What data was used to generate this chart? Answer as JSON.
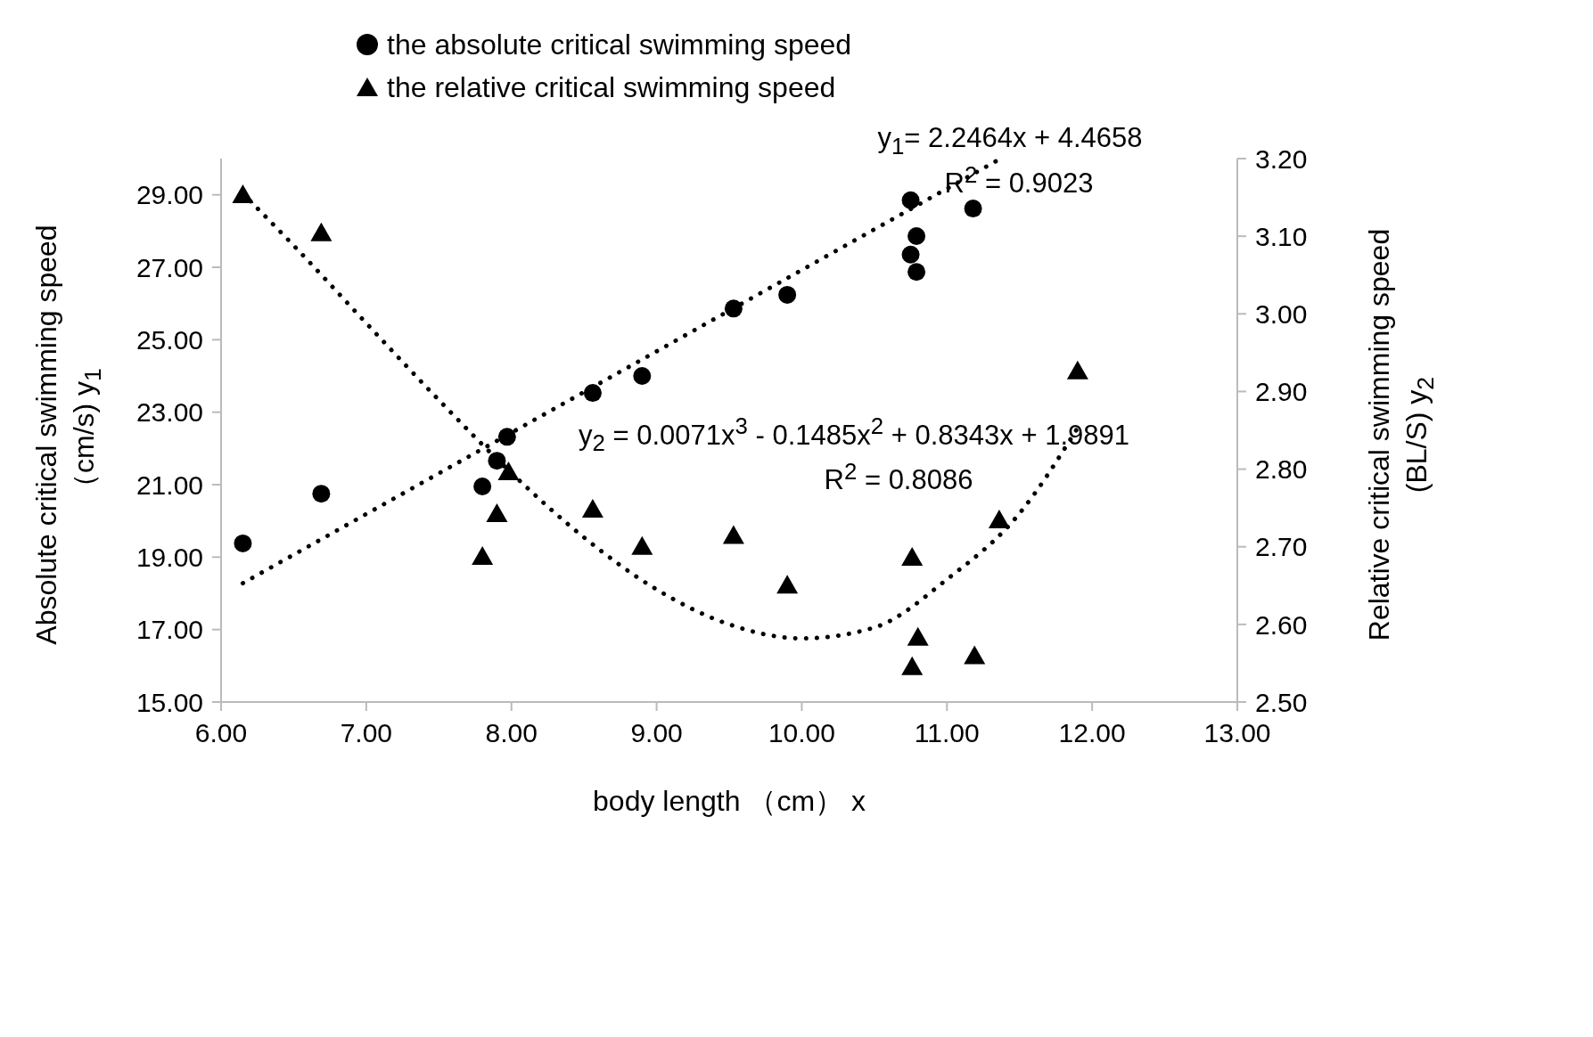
{
  "chart_data": {
    "type": "scatter",
    "xlabel": "body length （cm） x",
    "ylabel": "Absolute critical swimming speed\n（cm/s) y$_{1}$",
    "y2label": "Relative  critical swimming speed\n(BL/S) y$_{2}$",
    "xlim": [
      6,
      13
    ],
    "xticks": [
      {
        "value": 6,
        "label": "6.00"
      },
      {
        "value": 7,
        "label": "7.00"
      },
      {
        "value": 8,
        "label": "8.00"
      },
      {
        "value": 9,
        "label": "9.00"
      },
      {
        "value": 10,
        "label": "10.00"
      },
      {
        "value": 11,
        "label": "11.00"
      },
      {
        "value": 12,
        "label": "12.00"
      },
      {
        "value": 13,
        "label": "13.00"
      }
    ],
    "ylim": [
      15,
      30
    ],
    "yticks": [
      {
        "value": 15,
        "label": "15.00"
      },
      {
        "value": 17,
        "label": "17.00"
      },
      {
        "value": 19,
        "label": "19.00"
      },
      {
        "value": 21,
        "label": "21.00"
      },
      {
        "value": 23,
        "label": "23.00"
      },
      {
        "value": 25,
        "label": "25.00"
      },
      {
        "value": 27,
        "label": "27.00"
      },
      {
        "value": 29,
        "label": "29.00"
      }
    ],
    "y2lim": [
      2.5,
      3.2
    ],
    "y2ticks": [
      {
        "value": 2.5,
        "label": "2.50"
      },
      {
        "value": 2.6,
        "label": "2.60"
      },
      {
        "value": 2.7,
        "label": "2.70"
      },
      {
        "value": 2.8,
        "label": "2.80"
      },
      {
        "value": 2.9,
        "label": "2.90"
      },
      {
        "value": 3.0,
        "label": "3.00"
      },
      {
        "value": 3.1,
        "label": "3.10"
      },
      {
        "value": 3.2,
        "label": "3.20"
      }
    ],
    "legend": "top",
    "series": [
      {
        "name": "the absolute critical swimming  speed",
        "type": "scatter",
        "marker": "circle",
        "color": "#000000",
        "x": [
          6.15,
          6.69,
          7.8,
          7.9,
          7.97,
          8.56,
          8.9,
          9.53,
          9.9,
          10.75,
          10.79,
          10.75,
          10.79,
          11.18
        ],
        "values": [
          19.38,
          20.75,
          20.95,
          21.66,
          22.32,
          23.53,
          24.0,
          25.86,
          26.24,
          28.85,
          27.86,
          27.35,
          26.87,
          28.62
        ]
      },
      {
        "name": "the relative critical swimming  speed",
        "type": "scatter",
        "marker": "triangle",
        "axis": "y2",
        "color": "#000000",
        "x": [
          6.15,
          6.69,
          7.8,
          7.9,
          7.98,
          8.56,
          8.9,
          9.53,
          9.9,
          10.76,
          10.8,
          10.76,
          11.19,
          11.36,
          11.9
        ],
        "values": [
          3.153,
          3.104,
          2.687,
          2.742,
          2.796,
          2.748,
          2.7,
          2.714,
          2.65,
          2.686,
          2.583,
          2.545,
          2.559,
          2.734,
          2.926
        ]
      },
      {
        "type": "line",
        "line_style": "dotted",
        "marker": "none",
        "color": "#000000",
        "x": [
          6.15,
          11.37
        ],
        "values": [
          18.28,
          30.0
        ]
      },
      {
        "type": "line",
        "line_style": "dotted",
        "marker": "none",
        "axis": "y2",
        "color": "#000000",
        "x": [
          6.15,
          6.5,
          7,
          7.5,
          8,
          8.5,
          9,
          9.5,
          10,
          10.5,
          11,
          11.5,
          11.9
        ],
        "values": [
          3.155,
          3.088,
          2.988,
          2.889,
          2.795,
          2.712,
          2.645,
          2.6,
          2.582,
          2.596,
          2.658,
          2.743,
          2.853
        ]
      }
    ],
    "annotations": [
      "y$_{1}$= 2.2464x + 4.4658",
      "R$^{2}$ = 0.9023",
      "y$_{2}$ = 0.0071x$^{3}$ - 0.1485x$^{2}$ + 0.8343x + 1.9891",
      "R$^{2}$ = 0.8086"
    ]
  }
}
